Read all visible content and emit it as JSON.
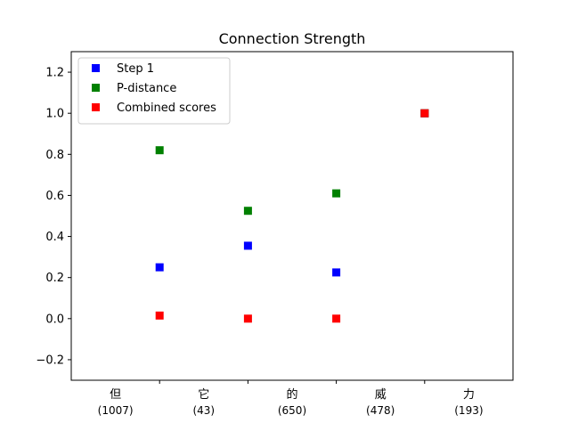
{
  "chart_data": {
    "type": "scatter",
    "title": "Connection Strength",
    "xlabel": "",
    "ylabel": "",
    "xlim": [
      0,
      5
    ],
    "ylim": [
      -0.3,
      1.3
    ],
    "y_ticks": [
      -0.2,
      0.0,
      0.2,
      0.4,
      0.6,
      0.8,
      1.0,
      1.2
    ],
    "y_tick_labels": [
      "−0.2",
      "0.0",
      "0.2",
      "0.4",
      "0.6",
      "0.8",
      "1.0",
      "1.2"
    ],
    "category_labels": [
      {
        "char": "但",
        "count": "(1007)",
        "x": 0.5
      },
      {
        "char": "它",
        "count": "(43)",
        "x": 1.5
      },
      {
        "char": "的",
        "count": "(650)",
        "x": 2.5
      },
      {
        "char": "威",
        "count": "(478)",
        "x": 3.5
      },
      {
        "char": "力",
        "count": "(193)",
        "x": 4.5
      }
    ],
    "boundary_ticks": [
      1,
      2,
      3,
      4
    ],
    "legend_position": "upper-left",
    "grid": false,
    "series": [
      {
        "name": "Step 1",
        "color": "#0000ff",
        "marker": "square",
        "points": [
          {
            "x": 1,
            "y": 0.25
          },
          {
            "x": 2,
            "y": 0.355
          },
          {
            "x": 3,
            "y": 0.225
          },
          {
            "x": 4,
            "y": 1.0
          }
        ]
      },
      {
        "name": "P-distance",
        "color": "#008000",
        "marker": "square",
        "points": [
          {
            "x": 1,
            "y": 0.82
          },
          {
            "x": 2,
            "y": 0.525
          },
          {
            "x": 3,
            "y": 0.61
          },
          {
            "x": 4,
            "y": 1.0
          }
        ]
      },
      {
        "name": "Combined scores",
        "color": "#ff0000",
        "marker": "square",
        "points": [
          {
            "x": 1,
            "y": 0.015
          },
          {
            "x": 2,
            "y": 0.0
          },
          {
            "x": 3,
            "y": 0.0
          },
          {
            "x": 4,
            "y": 1.0
          }
        ]
      }
    ]
  }
}
